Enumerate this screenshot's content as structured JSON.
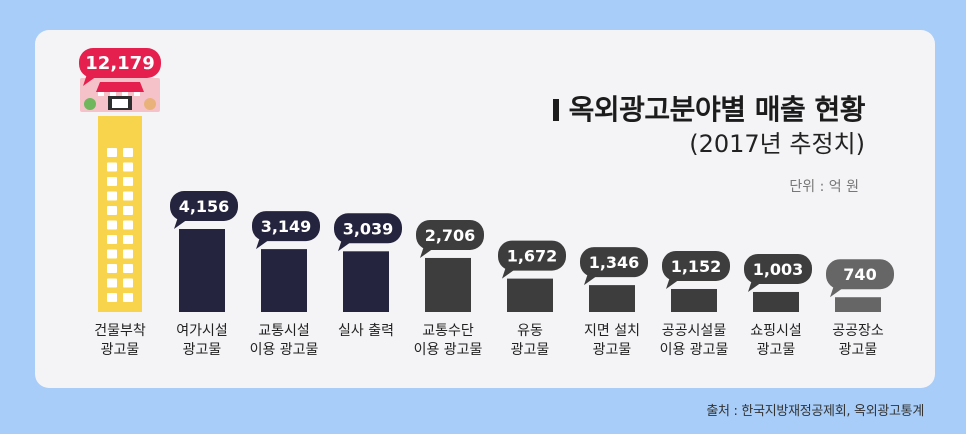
{
  "title": "옥외광고분야별 매출 현황",
  "subtitle": "(2017년 추정치)",
  "unit": "단위 : 억 원",
  "source": "출처 : 한국지방재정공제회, 옥외광고통계",
  "chart_data": {
    "type": "bar",
    "title": "옥외광고분야별 매출 현황",
    "subtitle": "(2017년 추정치)",
    "unit": "억 원",
    "categories": [
      "건물부착\n광고물",
      "여가시설\n광고물",
      "교통시설\n이용 광고물",
      "실사 출력",
      "교통수단\n이용 광고물",
      "유동\n광고물",
      "지면 설치\n광고물",
      "공공시설물\n이용 광고물",
      "쇼핑시설\n광고물",
      "공공장소\n광고물"
    ],
    "values": [
      12179,
      4156,
      3149,
      3039,
      2706,
      1672,
      1346,
      1152,
      1003,
      740
    ],
    "value_labels": [
      "12,179",
      "4,156",
      "3,149",
      "3,039",
      "2,706",
      "1,672",
      "1,346",
      "1,152",
      "1,003",
      "740"
    ],
    "colors": {
      "building": "#f7d44c",
      "building_window": "#ffffff",
      "highlight_tag": "#e5204e",
      "dark_bars": "#24243e",
      "mid_bars": "#3d3d3d",
      "light_bar": "#666666",
      "background": "#a8cdf8",
      "card": "#f4f4f7"
    },
    "icons": [
      "storefront-icon"
    ]
  }
}
